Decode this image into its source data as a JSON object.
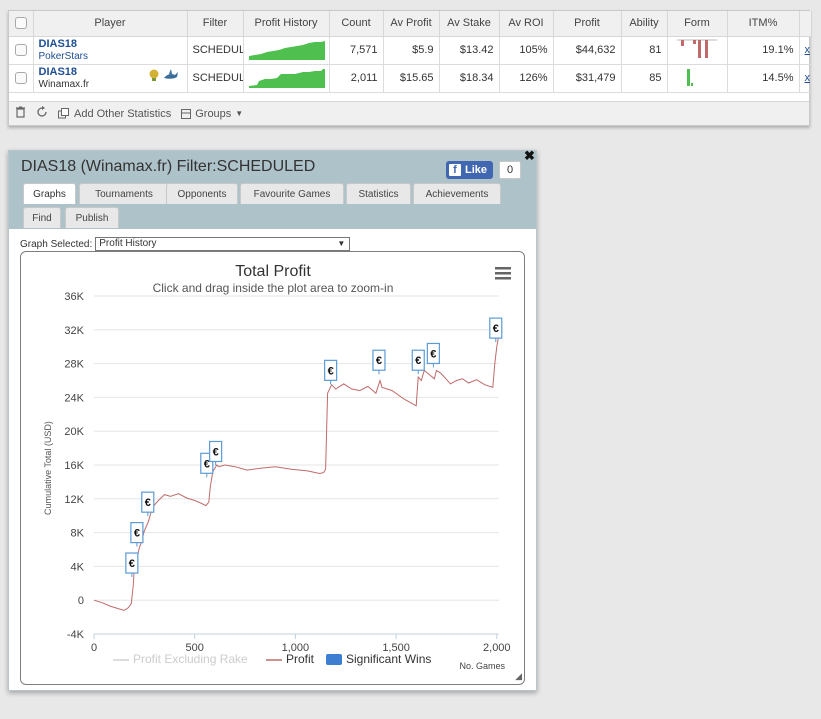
{
  "stats": {
    "columns": [
      "Player",
      "Filter",
      "Profit History",
      "Count",
      "Av Profit",
      "Av Stake",
      "Av ROI",
      "Profit",
      "Ability",
      "Form",
      "ITM%"
    ],
    "rows": [
      {
        "player": "DIAS18",
        "site": "PokerStars",
        "filter": "SCHEDULED",
        "count": "7,571",
        "av_profit": "$5.9",
        "av_stake": "$13.42",
        "av_roi": "105%",
        "profit": "$44,632",
        "ability": "81",
        "itm": "19.1%",
        "remove": "x"
      },
      {
        "player": "DIAS18",
        "site": "Winamax.fr",
        "filter": "SCHEDULED",
        "count": "2,011",
        "av_profit": "$15.65",
        "av_stake": "$18.34",
        "av_roi": "126%",
        "profit": "$31,479",
        "ability": "85",
        "itm": "14.5%",
        "remove": "x"
      }
    ],
    "footer": {
      "add_label": "Add Other Statistics",
      "groups_label": "Groups"
    }
  },
  "dialog": {
    "title": "DIAS18 (Winamax.fr) Filter:SCHEDULED",
    "like_label": "Like",
    "like_count": "0",
    "close_glyph": "✖",
    "tabs": [
      "Graphs",
      "Tournaments",
      "Opponents",
      "Favourite Games",
      "Statistics",
      "Achievements",
      "Find",
      "Publish"
    ],
    "graph_label": "Graph Selected:",
    "graph_value": "Profit History"
  },
  "colors": {
    "profit_line": "#c06a6a",
    "spark_green": "#4fbf4f",
    "header_bg": "#aec2c9",
    "marker_border": "#5b9bd5"
  },
  "chart_data": {
    "type": "line",
    "title": "Total Profit",
    "subtitle": "Click and drag inside the plot area to zoom-in",
    "xlabel": "No. Games",
    "ylabel": "Cumulative Total (USD)",
    "xlim": [
      0,
      2011
    ],
    "ylim": [
      -4000,
      36000
    ],
    "x_ticks": [
      "0",
      "500",
      "1,000",
      "1,500",
      "2,000"
    ],
    "y_ticks": [
      "-4K",
      "0",
      "4K",
      "8K",
      "12K",
      "16K",
      "20K",
      "24K",
      "28K",
      "32K",
      "36K"
    ],
    "legend": [
      "Profit Excluding Rake",
      "Profit",
      "Significant Wins"
    ],
    "series": [
      {
        "name": "Profit",
        "x": [
          0,
          40,
          80,
          120,
          150,
          170,
          185,
          195,
          200,
          210,
          225,
          235,
          250,
          270,
          290,
          320,
          350,
          380,
          420,
          460,
          500,
          530,
          555,
          570,
          578,
          590,
          610,
          620,
          650,
          700,
          760,
          820,
          900,
          980,
          1060,
          1120,
          1140,
          1150,
          1160,
          1180,
          1200,
          1240,
          1280,
          1320,
          1360,
          1400,
          1420,
          1430,
          1480,
          1540,
          1600,
          1610,
          1625,
          1640,
          1660,
          1690,
          1700,
          1720,
          1740,
          1770,
          1800,
          1830,
          1860,
          1900,
          1940,
          1980,
          1990,
          2000,
          2011
        ],
        "y": [
          0,
          -300,
          -700,
          -1000,
          -1200,
          -900,
          -400,
          1800,
          3800,
          4500,
          6200,
          6800,
          8200,
          9300,
          11000,
          11800,
          12500,
          12300,
          12600,
          12100,
          11800,
          11500,
          11200,
          11600,
          13500,
          15200,
          16000,
          15800,
          16000,
          15800,
          15400,
          15600,
          15800,
          15500,
          15300,
          15000,
          15100,
          15500,
          24500,
          25500,
          25000,
          25600,
          25000,
          24800,
          25300,
          24500,
          26000,
          25200,
          24800,
          23800,
          23000,
          26400,
          26000,
          27200,
          26800,
          26200,
          27200,
          26900,
          26400,
          25600,
          26000,
          26200,
          25700,
          26100,
          25500,
          25200,
          28000,
          30000,
          31500
        ]
      },
      {
        "name": "Significant Wins",
        "x": [
          188,
          213,
          267,
          560,
          604,
          1175,
          1415,
          1610,
          1685,
          1995
        ],
        "y": [
          4400,
          8000,
          11600,
          16200,
          17600,
          27200,
          28400,
          28400,
          29200,
          32200
        ]
      }
    ]
  }
}
